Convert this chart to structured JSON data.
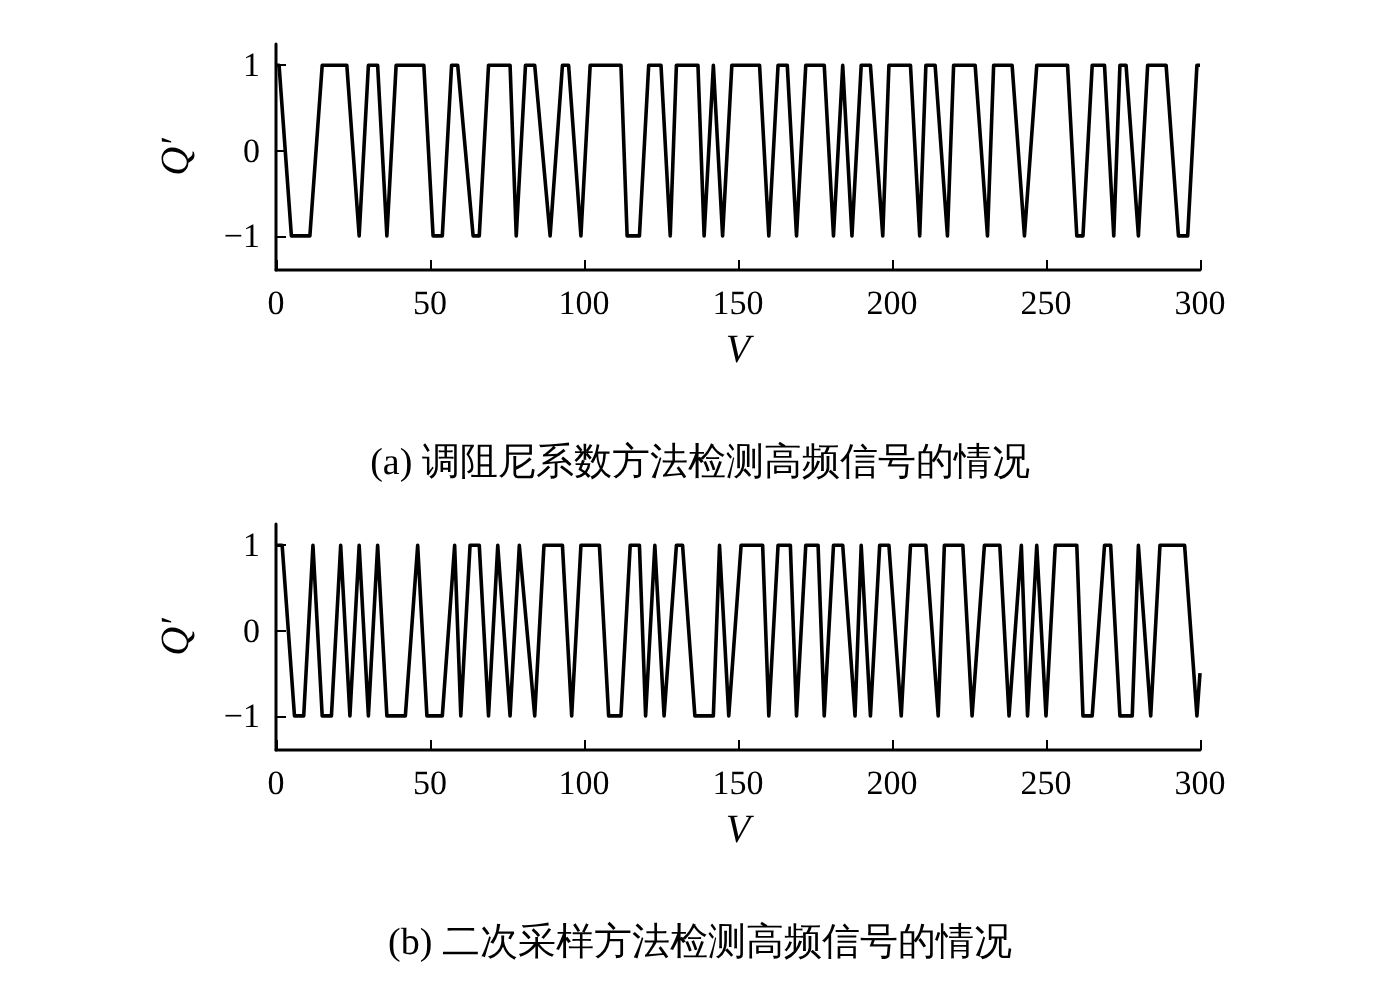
{
  "chart_data": [
    {
      "type": "line",
      "title": "(a) 调阻尼系数方法检测高频信号的情况",
      "xlabel": "V",
      "ylabel": "Q′",
      "color": "#000000",
      "marker": "none",
      "line_style": "solid",
      "xlim": [
        0,
        300
      ],
      "xticks": [
        0,
        50,
        100,
        150,
        200,
        250,
        300
      ],
      "ylim": [
        -1.4,
        1.25
      ],
      "yticks": [
        -1,
        0,
        1
      ],
      "x": [
        0,
        1,
        5,
        11,
        15,
        23,
        27,
        30,
        33,
        36,
        39,
        48,
        51,
        54,
        57,
        59,
        64,
        66,
        69,
        76,
        78,
        81,
        84,
        89,
        93,
        95,
        99,
        102,
        112,
        114,
        118,
        121,
        125,
        128,
        130,
        137,
        139,
        142,
        145,
        148,
        157,
        160,
        163,
        166,
        169,
        172,
        178,
        181,
        184,
        187,
        190,
        193,
        197,
        199,
        206,
        209,
        211,
        214,
        218,
        220,
        227,
        231,
        233,
        239,
        243,
        247,
        257,
        260,
        262,
        265,
        269,
        272,
        274,
        276,
        280,
        283,
        289,
        293,
        296,
        299,
        300
      ],
      "values": [
        1,
        1,
        -1,
        -1,
        1,
        1,
        -1,
        1,
        1,
        -1,
        1,
        1,
        -1,
        -1,
        1,
        1,
        -1,
        -1,
        1,
        1,
        -1,
        1,
        1,
        -1,
        1,
        1,
        -1,
        1,
        1,
        -1,
        -1,
        1,
        1,
        -1,
        1,
        1,
        -1,
        1,
        -1,
        1,
        1,
        -1,
        1,
        1,
        -1,
        1,
        1,
        -1,
        1,
        -1,
        1,
        1,
        -1,
        1,
        1,
        -1,
        1,
        1,
        -1,
        1,
        1,
        -1,
        1,
        1,
        -1,
        1,
        1,
        -1,
        -1,
        1,
        1,
        -1,
        1,
        1,
        -1,
        1,
        1,
        -1,
        -1,
        1,
        1
      ]
    },
    {
      "type": "line",
      "title": "(b) 二次采样方法检测高频信号的情况",
      "xlabel": "V",
      "ylabel": "Q′",
      "color": "#000000",
      "marker": "none",
      "line_style": "solid",
      "xlim": [
        0,
        300
      ],
      "xticks": [
        0,
        50,
        100,
        150,
        200,
        250,
        300
      ],
      "ylim": [
        -1.4,
        1.25
      ],
      "yticks": [
        -1,
        0,
        1
      ],
      "x": [
        0,
        2,
        6,
        9,
        12,
        15,
        18,
        21,
        24,
        27,
        30,
        33,
        36,
        42,
        46,
        49,
        54,
        58,
        60,
        63,
        66,
        69,
        72,
        76,
        79,
        84,
        87,
        93,
        96,
        99,
        105,
        108,
        112,
        115,
        118,
        120,
        123,
        126,
        130,
        132,
        136,
        142,
        144,
        147,
        151,
        158,
        160,
        163,
        167,
        169,
        172,
        176,
        178,
        181,
        184,
        188,
        190,
        193,
        196,
        199,
        203,
        206,
        211,
        215,
        217,
        223,
        226,
        230,
        235,
        238,
        242,
        244,
        247,
        250,
        253,
        260,
        262,
        265,
        269,
        271,
        274,
        278,
        280,
        284,
        287,
        295,
        299,
        300
      ],
      "values": [
        1,
        1,
        -1,
        -1,
        1,
        -1,
        -1,
        1,
        -1,
        1,
        -1,
        1,
        -1,
        -1,
        1,
        -1,
        -1,
        1,
        -1,
        1,
        1,
        -1,
        1,
        -1,
        1,
        -1,
        1,
        1,
        -1,
        1,
        1,
        -1,
        -1,
        1,
        1,
        -1,
        1,
        -1,
        1,
        1,
        -1,
        -1,
        1,
        -1,
        1,
        1,
        -1,
        1,
        1,
        -1,
        1,
        1,
        -1,
        1,
        1,
        -1,
        1,
        -1,
        1,
        1,
        -1,
        1,
        1,
        -1,
        1,
        1,
        -1,
        1,
        1,
        -1,
        1,
        -1,
        1,
        -1,
        1,
        1,
        -1,
        -1,
        1,
        1,
        -1,
        -1,
        1,
        -1,
        1,
        1,
        -1,
        -0.5
      ]
    }
  ]
}
